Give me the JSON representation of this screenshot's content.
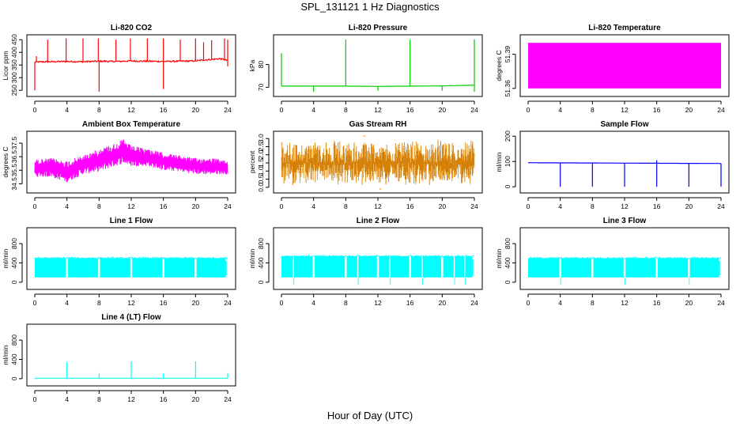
{
  "page": {
    "title": "SPL_131121  1 Hz Diagnostics",
    "xlabel": "Hour of Day (UTC)"
  },
  "colors": {
    "co2": "#ff0000",
    "pressure": "#00cc00",
    "temperature": "#ff00ff",
    "rh": "#ffa500",
    "rh_accent": "#aa5500",
    "sample_flow": "#0000ff",
    "line_flow": "#00ffff",
    "axis": "#000000"
  },
  "chart_data": [
    {
      "type": "line",
      "title": "Li-820 CO2",
      "ylabel": "Licor ppm",
      "x_ticks": [
        0,
        4,
        8,
        12,
        16,
        20,
        24
      ],
      "xlim": [
        0,
        24
      ],
      "ylim": [
        235,
        460
      ],
      "y_ticks": [
        250,
        300,
        350,
        400,
        450
      ],
      "series": [
        {
          "color_key": "co2",
          "baseline": 365,
          "x": [
            0,
            2,
            4,
            6,
            8,
            10,
            12,
            14,
            16,
            18,
            20,
            21,
            22,
            23,
            24
          ],
          "y": [
            362,
            363,
            364,
            363,
            365,
            364,
            366,
            365,
            364,
            365,
            366,
            370,
            372,
            375,
            368
          ],
          "spikes_up": [
            [
              0.2,
              385
            ],
            [
              1.6,
              450
            ],
            [
              3.9,
              455
            ],
            [
              6.0,
              455
            ],
            [
              7.9,
              455
            ],
            [
              10.1,
              450
            ],
            [
              11.9,
              455
            ],
            [
              14.0,
              455
            ],
            [
              16.0,
              455
            ],
            [
              18.1,
              450
            ],
            [
              20.0,
              455
            ],
            [
              21.0,
              440
            ],
            [
              22.0,
              448
            ],
            [
              23.6,
              455
            ],
            [
              24.0,
              450
            ]
          ],
          "spikes_down": [
            [
              0.0,
              250
            ],
            [
              8.0,
              245
            ],
            [
              16.0,
              255
            ],
            [
              24.0,
              345
            ]
          ]
        }
      ]
    },
    {
      "type": "line",
      "title": "Li-820 Pressure",
      "ylabel": "kPa",
      "x_ticks": [
        0,
        4,
        8,
        12,
        16,
        20,
        24
      ],
      "xlim": [
        0,
        24
      ],
      "ylim": [
        67,
        92
      ],
      "y_ticks": [
        70,
        80
      ],
      "series": [
        {
          "color_key": "pressure",
          "baseline": 70.5,
          "x": [
            0,
            8,
            12,
            16,
            20,
            24
          ],
          "y": [
            70.5,
            70.5,
            70.4,
            70.5,
            70.6,
            70.9
          ],
          "spikes_up": [
            [
              0.0,
              85
            ],
            [
              8.0,
              91
            ],
            [
              16.0,
              91
            ],
            [
              24.0,
              91
            ]
          ],
          "spikes_down": [
            [
              4.0,
              68
            ],
            [
              12.0,
              68.5
            ],
            [
              20.0,
              68.5
            ],
            [
              24.0,
              68
            ]
          ]
        }
      ]
    },
    {
      "type": "area",
      "title": "Li-820 Temperature",
      "ylabel": "degrees C",
      "x_ticks": [
        0,
        4,
        8,
        12,
        16,
        20,
        24
      ],
      "xlim": [
        0,
        24
      ],
      "ylim": [
        51.355,
        51.405
      ],
      "y_ticks": [
        51.36,
        51.39
      ],
      "series": [
        {
          "color_key": "temperature",
          "band": [
            51.36,
            51.4
          ]
        }
      ]
    },
    {
      "type": "line",
      "title": "Ambient Box Temperature",
      "ylabel": "degrees C",
      "x_ticks": [
        0,
        4,
        8,
        12,
        16,
        20,
        24
      ],
      "xlim": [
        0,
        24
      ],
      "ylim": [
        34.0,
        38.2
      ],
      "y_ticks": [
        34.5,
        35.5,
        36.5,
        37.5
      ],
      "series": [
        {
          "color_key": "temperature",
          "x": [
            0,
            2,
            4,
            6,
            8,
            10,
            11,
            12,
            14,
            16,
            18,
            20,
            22,
            24
          ],
          "y_low": [
            35.0,
            35.0,
            34.6,
            35.2,
            35.4,
            35.8,
            36.0,
            35.8,
            35.8,
            35.5,
            35.4,
            35.2,
            35.2,
            35.2
          ],
          "y_high": [
            36.3,
            36.4,
            36.2,
            36.6,
            37.1,
            37.5,
            37.8,
            37.3,
            37.1,
            36.8,
            36.6,
            36.4,
            36.4,
            36.2
          ]
        }
      ]
    },
    {
      "type": "scatter",
      "title": "Gas Stream RH",
      "ylabel": "percent",
      "x_ticks": [
        0,
        4,
        8,
        12,
        16,
        20,
        24
      ],
      "xlim": [
        0,
        24
      ],
      "ylim": [
        -0.2,
        3.3
      ],
      "y_ticks": [
        0.0,
        0.5,
        1.0,
        1.5,
        2.0,
        2.5,
        3.0
      ],
      "series": [
        {
          "color_key": "rh",
          "x_range": [
            0,
            24
          ],
          "y_range": [
            0.1,
            2.9
          ],
          "center": 1.5
        }
      ]
    },
    {
      "type": "line",
      "title": "Sample Flow",
      "ylabel": "ml/min",
      "x_ticks": [
        0,
        4,
        8,
        12,
        16,
        20,
        24
      ],
      "xlim": [
        0,
        24
      ],
      "ylim": [
        -15,
        210
      ],
      "y_ticks": [
        0,
        100,
        200
      ],
      "series": [
        {
          "color_key": "sample_flow",
          "baseline": 93,
          "x": [
            0,
            24
          ],
          "y": [
            95,
            92
          ],
          "spikes_down": [
            [
              4.0,
              0
            ],
            [
              8.0,
              0
            ],
            [
              12.0,
              0
            ],
            [
              16.0,
              0
            ],
            [
              20.0,
              0
            ],
            [
              24.0,
              0
            ]
          ],
          "spikes_up": [
            [
              16.0,
              105
            ]
          ]
        }
      ]
    },
    {
      "type": "line",
      "title": "Line 1 Flow",
      "ylabel": "ml/min",
      "x_ticks": [
        0,
        4,
        8,
        12,
        16,
        20,
        24
      ],
      "xlim": [
        0,
        24
      ],
      "ylim": [
        -100,
        1080
      ],
      "y_ticks": [
        0,
        400,
        800
      ],
      "series": [
        {
          "color_key": "line_flow",
          "band": [
            100,
            500
          ],
          "gaps": [
            4,
            8,
            12,
            16,
            20
          ],
          "dips": []
        }
      ]
    },
    {
      "type": "line",
      "title": "Line 2 Flow",
      "ylabel": "ml/min",
      "x_ticks": [
        0,
        4,
        8,
        12,
        16,
        20,
        24
      ],
      "xlim": [
        0,
        24
      ],
      "ylim": [
        -100,
        1080
      ],
      "y_ticks": [
        0,
        400,
        800
      ],
      "series": [
        {
          "color_key": "line_flow",
          "band": [
            100,
            540
          ],
          "gaps": [
            4,
            8,
            12,
            16,
            20
          ],
          "dips": [
            1.5,
            9.5,
            13.5,
            17.5,
            21.5,
            22.8
          ]
        }
      ]
    },
    {
      "type": "line",
      "title": "Line 3 Flow",
      "ylabel": "ml/min",
      "x_ticks": [
        0,
        4,
        8,
        12,
        16,
        20,
        24
      ],
      "xlim": [
        0,
        24
      ],
      "ylim": [
        -100,
        1080
      ],
      "y_ticks": [
        0,
        400,
        800
      ],
      "series": [
        {
          "color_key": "line_flow",
          "band": [
            100,
            500
          ],
          "gaps": [
            4,
            8,
            12,
            16,
            20
          ],
          "dips": [
            4,
            12,
            20
          ]
        }
      ]
    },
    {
      "type": "line",
      "title": "Line 4 (LT) Flow",
      "ylabel": "ml/min",
      "x_ticks": [
        0,
        4,
        8,
        12,
        16,
        20,
        24
      ],
      "xlim": [
        0,
        24
      ],
      "ylim": [
        -100,
        1080
      ],
      "y_ticks": [
        0,
        400,
        800
      ],
      "series": [
        {
          "color_key": "line_flow",
          "baseline": 10,
          "spikes_up": [
            [
              4.0,
              350
            ],
            [
              8.0,
              120
            ],
            [
              12.0,
              360
            ],
            [
              16.0,
              110
            ],
            [
              20.0,
              360
            ],
            [
              24.0,
              120
            ]
          ]
        }
      ]
    }
  ]
}
